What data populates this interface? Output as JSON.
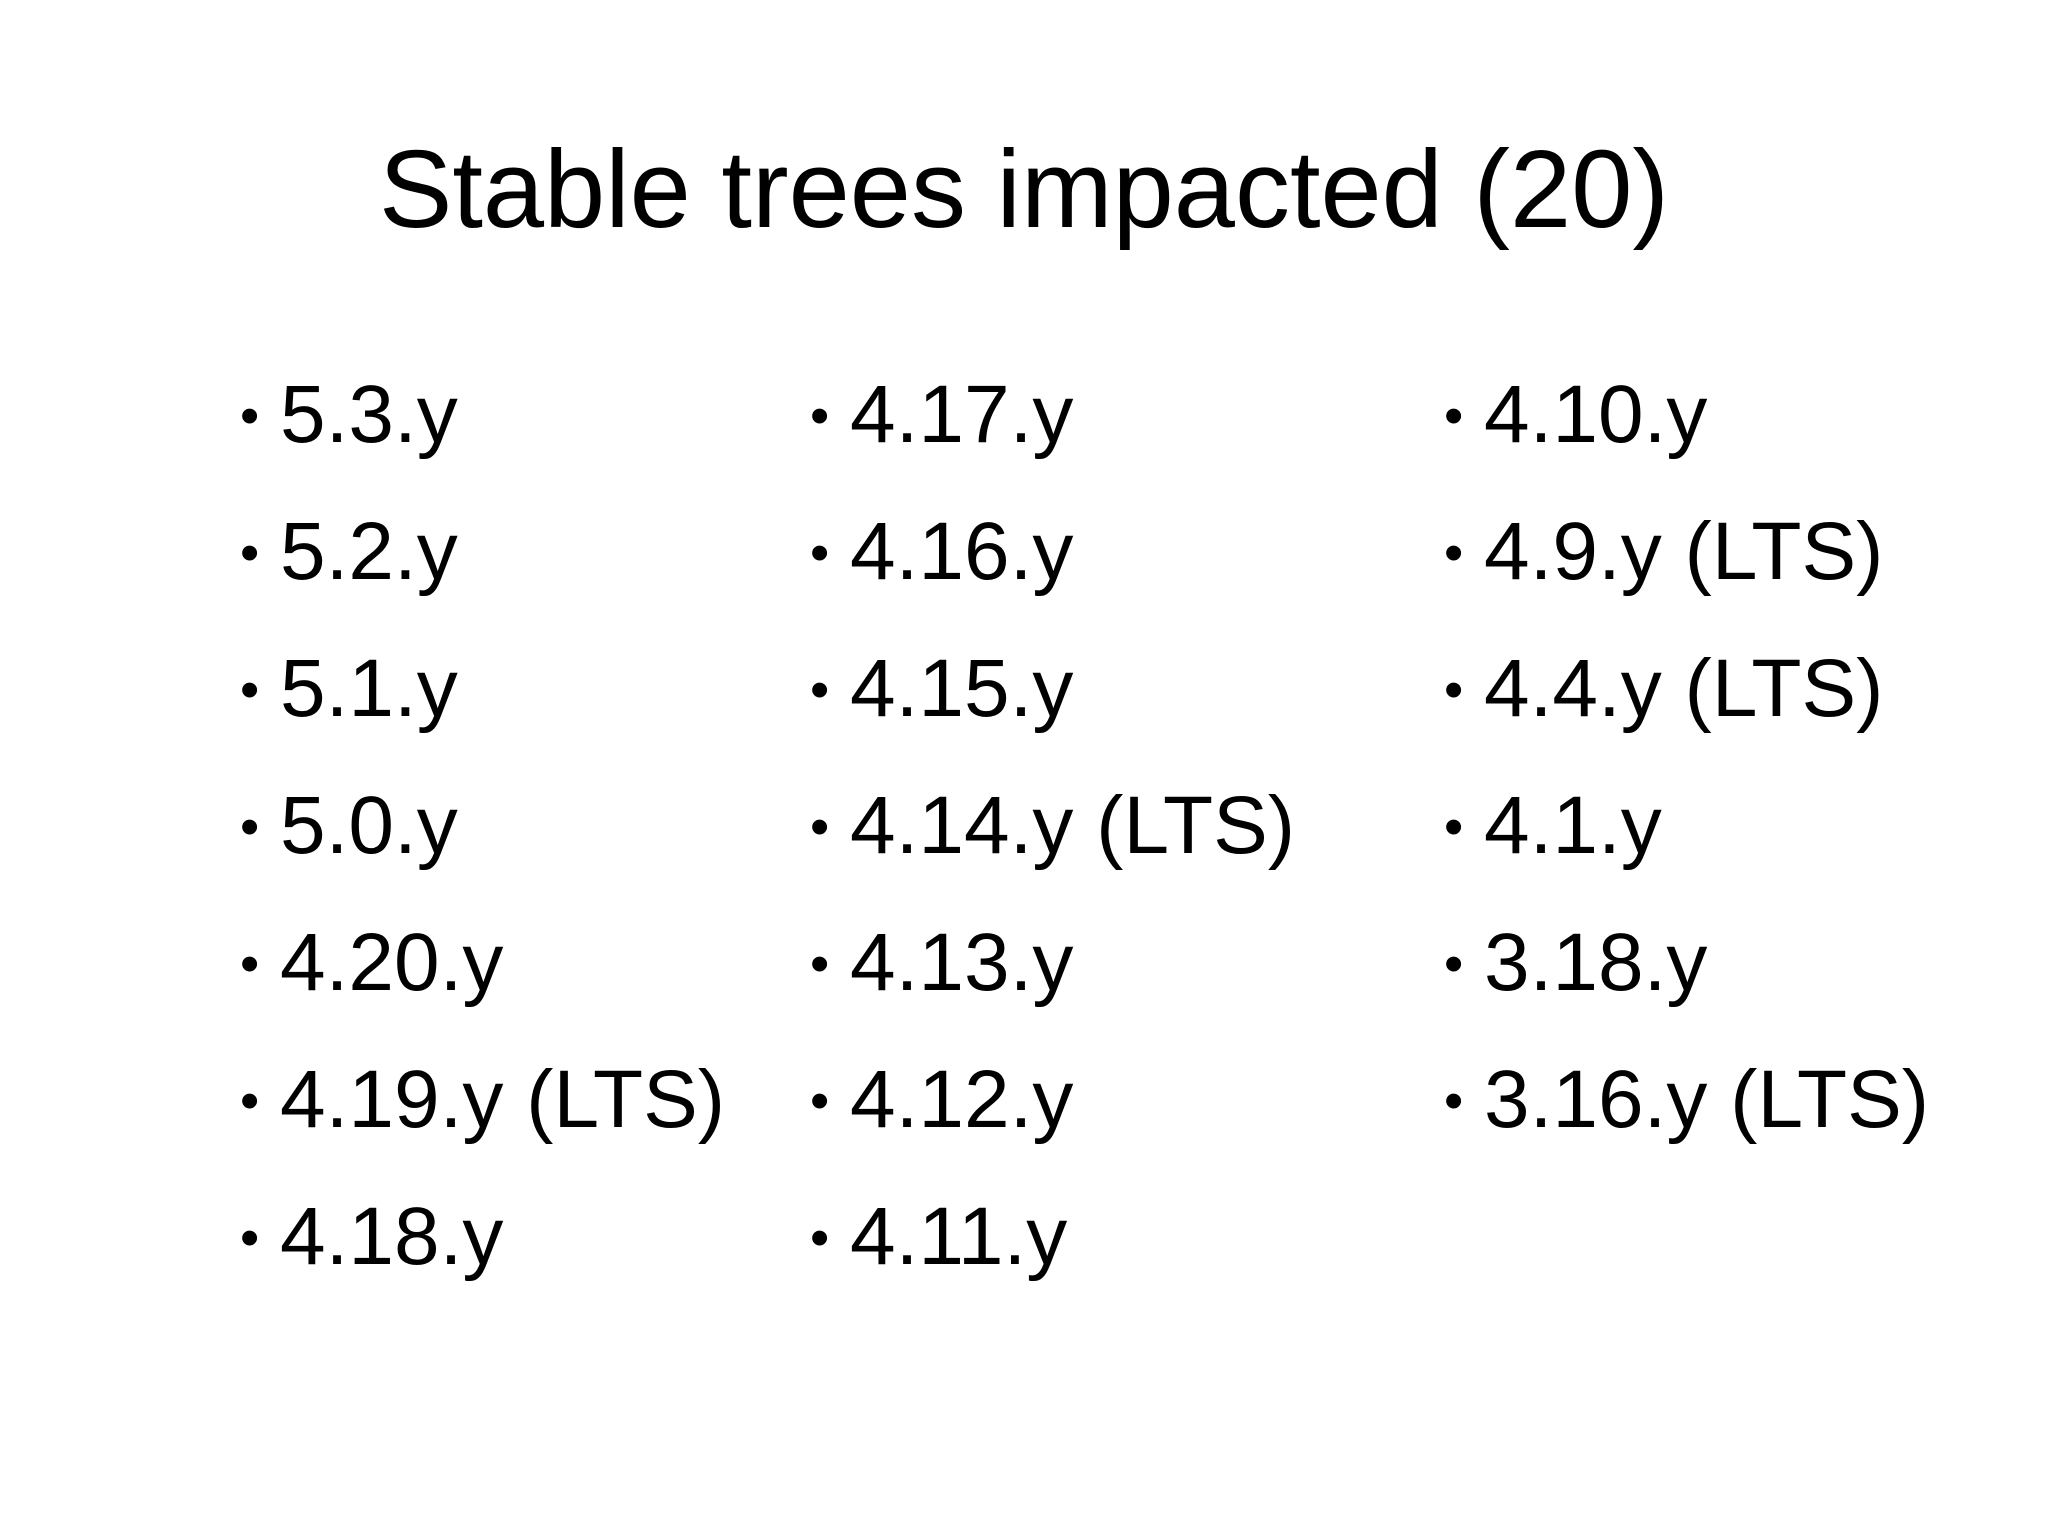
{
  "slide": {
    "title": "Stable trees impacted (20)",
    "bullet_symbol": "•",
    "columns": [
      {
        "items": [
          "5.3.y",
          "5.2.y",
          "5.1.y",
          "5.0.y",
          "4.20.y",
          "4.19.y (LTS)",
          "4.18.y"
        ]
      },
      {
        "items": [
          "4.17.y",
          "4.16.y",
          "4.15.y",
          "4.14.y (LTS)",
          "4.13.y",
          "4.12.y",
          "4.11.y"
        ]
      },
      {
        "items": [
          "4.10.y",
          "4.9.y (LTS)",
          "4.4.y (LTS)",
          "4.1.y",
          "3.18.y",
          "3.16.y (LTS)"
        ]
      }
    ]
  }
}
